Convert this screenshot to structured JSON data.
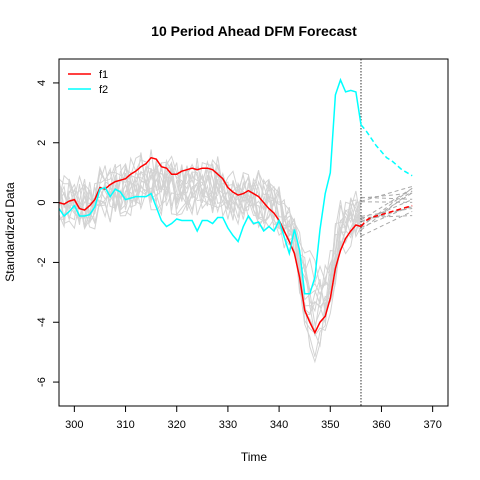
{
  "chart_data": {
    "type": "line",
    "title": "10 Period Ahead DFM Forecast",
    "xlabel": "Time",
    "ylabel": "Standardized Data",
    "xlim": [
      297,
      373
    ],
    "ylim": [
      -6.8,
      4.8
    ],
    "x_ticks": [
      300,
      310,
      320,
      330,
      340,
      350,
      360,
      370
    ],
    "y_ticks": [
      4,
      2,
      0,
      -2,
      -4,
      -6
    ],
    "forecast_origin": 356,
    "grid": false,
    "legend_position": "top-left",
    "colors": {
      "f1": "#ff0000",
      "f2": "#00ffff",
      "background_series": "#d3d3d3",
      "forecast_background": "#a9a9a9",
      "vline": "#555555"
    },
    "series": [
      {
        "name": "f1",
        "color": "#ff0000",
        "x": [
          297,
          298,
          299,
          300,
          301,
          302,
          303,
          304,
          305,
          306,
          307,
          308,
          309,
          310,
          311,
          312,
          313,
          314,
          315,
          316,
          317,
          318,
          319,
          320,
          321,
          322,
          323,
          324,
          325,
          326,
          327,
          328,
          329,
          330,
          331,
          332,
          333,
          334,
          335,
          336,
          337,
          338,
          339,
          340,
          341,
          342,
          343,
          344,
          345,
          346,
          347,
          348,
          349,
          350,
          351,
          352,
          353,
          354,
          355,
          356
        ],
        "values": [
          0.0,
          -0.05,
          0.05,
          0.1,
          -0.2,
          -0.25,
          -0.1,
          0.1,
          0.5,
          0.45,
          0.6,
          0.7,
          0.75,
          0.8,
          0.95,
          1.05,
          1.2,
          1.3,
          1.5,
          1.45,
          1.2,
          1.15,
          0.95,
          0.95,
          1.05,
          1.1,
          1.15,
          1.1,
          1.15,
          1.15,
          1.1,
          0.95,
          0.8,
          0.5,
          0.35,
          0.25,
          0.3,
          0.4,
          0.3,
          0.2,
          0.0,
          -0.2,
          -0.35,
          -0.6,
          -0.95,
          -1.3,
          -1.7,
          -2.5,
          -3.6,
          -4.0,
          -4.35,
          -4.0,
          -3.8,
          -3.2,
          -2.2,
          -1.6,
          -1.2,
          -0.95,
          -0.75,
          -0.8
        ]
      },
      {
        "name": "f2",
        "color": "#00ffff",
        "x": [
          297,
          298,
          299,
          300,
          301,
          302,
          303,
          304,
          305,
          306,
          307,
          308,
          309,
          310,
          311,
          312,
          313,
          314,
          315,
          316,
          317,
          318,
          319,
          320,
          321,
          322,
          323,
          324,
          325,
          326,
          327,
          328,
          329,
          330,
          331,
          332,
          333,
          334,
          335,
          336,
          337,
          338,
          339,
          340,
          341,
          342,
          343,
          344,
          345,
          346,
          347,
          348,
          349,
          350,
          351,
          352,
          353,
          354,
          355,
          356
        ],
        "values": [
          -0.2,
          -0.45,
          -0.3,
          -0.1,
          -0.45,
          -0.45,
          -0.4,
          -0.15,
          0.45,
          0.5,
          0.2,
          0.45,
          0.35,
          0.1,
          0.15,
          0.2,
          0.2,
          0.2,
          0.3,
          -0.15,
          -0.6,
          -0.8,
          -0.7,
          -0.55,
          -0.6,
          -0.6,
          -0.6,
          -0.95,
          -0.6,
          -0.6,
          -0.7,
          -0.5,
          -0.5,
          -0.85,
          -1.1,
          -1.3,
          -0.8,
          -0.45,
          -0.7,
          -0.65,
          -0.95,
          -0.8,
          -0.95,
          -0.6,
          -1.15,
          -1.7,
          -0.9,
          -1.6,
          -3.05,
          -3.05,
          -2.5,
          -0.9,
          0.3,
          1.0,
          3.6,
          4.1,
          3.7,
          3.75,
          3.7,
          2.6
        ]
      }
    ],
    "forecasts": [
      {
        "name": "f1",
        "color": "#ff0000",
        "x": [
          356,
          357,
          358,
          359,
          360,
          361,
          362,
          363,
          364,
          365,
          366
        ],
        "values": [
          -0.8,
          -0.6,
          -0.5,
          -0.45,
          -0.4,
          -0.35,
          -0.3,
          -0.25,
          -0.2,
          -0.15,
          -0.1
        ]
      },
      {
        "name": "f2",
        "color": "#00ffff",
        "x": [
          356,
          357,
          358,
          359,
          360,
          361,
          362,
          363,
          364,
          365,
          366
        ],
        "values": [
          2.6,
          2.4,
          2.15,
          1.9,
          1.7,
          1.5,
          1.4,
          1.25,
          1.1,
          1.0,
          0.9
        ]
      }
    ]
  }
}
